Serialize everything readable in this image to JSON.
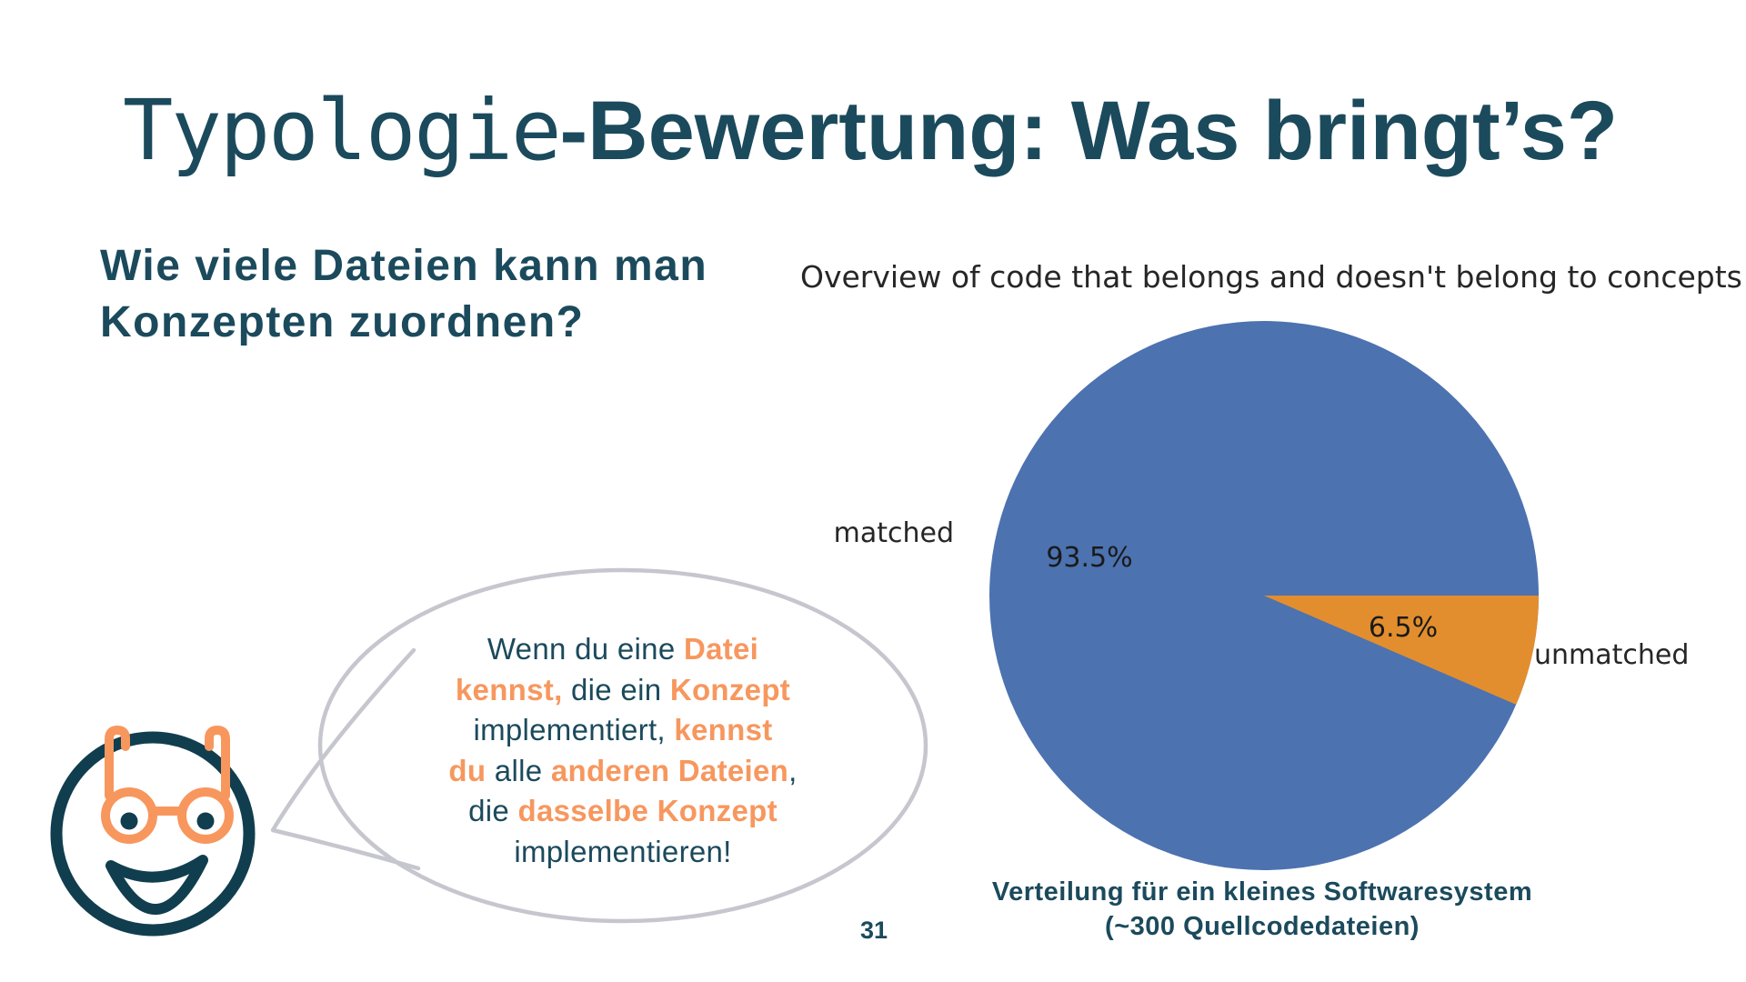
{
  "slide": {
    "title_mono": "Typologie",
    "title_bold": "-Bewertung: Was bringt’s?",
    "question_line1": "Wie viele Dateien kann man",
    "question_line2": "Konzepten zuordnen?",
    "page_number": "31"
  },
  "chart": {
    "title": "Overview of code that belongs and doesn't belong to concepts",
    "label_matched": "matched",
    "label_unmatched": "unmatched",
    "pct_matched": "93.5%",
    "pct_unmatched": "6.5%",
    "caption_line1": "Verteilung für ein kleines Softwaresystem",
    "caption_line2": "(~300 Quellcodedateien)"
  },
  "chart_data": {
    "type": "pie",
    "title": "Overview of code that belongs and doesn't belong to concepts",
    "categories": [
      "matched",
      "unmatched"
    ],
    "values": [
      93.5,
      6.5
    ],
    "unit": "percent",
    "colors": [
      "#4C72B0",
      "#E28E2E"
    ],
    "start_angle_deg": 0,
    "counterclock": true,
    "labels_position": "outside",
    "percent_labels_position": "inside",
    "legend": "none",
    "caption": "Verteilung für ein kleines Softwaresystem (~300 Quellcodedateien)"
  },
  "speech_bubble": {
    "lines": [
      [
        {
          "t": "Wenn du eine ",
          "hl": false
        },
        {
          "t": "Datei",
          "hl": true
        }
      ],
      [
        {
          "t": "kennst,",
          "hl": true
        },
        {
          "t": " die ein ",
          "hl": false
        },
        {
          "t": "Konzept",
          "hl": true
        }
      ],
      [
        {
          "t": "implementiert, ",
          "hl": false
        },
        {
          "t": "kennst",
          "hl": true
        }
      ],
      [
        {
          "t": "du",
          "hl": true
        },
        {
          "t": " alle ",
          "hl": false
        },
        {
          "t": "anderen Dateien",
          "hl": true
        },
        {
          "t": ",",
          "hl": false
        }
      ],
      [
        {
          "t": "die ",
          "hl": false
        },
        {
          "t": "dasselbe Konzept",
          "hl": true
        }
      ],
      [
        {
          "t": "implementieren!",
          "hl": false
        }
      ]
    ]
  },
  "colors": {
    "teal_text": "#1B4A5C",
    "teal_face": "#113E4F",
    "orange_accent": "#F7975E",
    "pie_blue": "#4C72B0",
    "pie_orange": "#E28E2E",
    "bubble_border": "#C6C6CE",
    "chart_text": "#262626",
    "pct_text": "#1A1A1A"
  }
}
